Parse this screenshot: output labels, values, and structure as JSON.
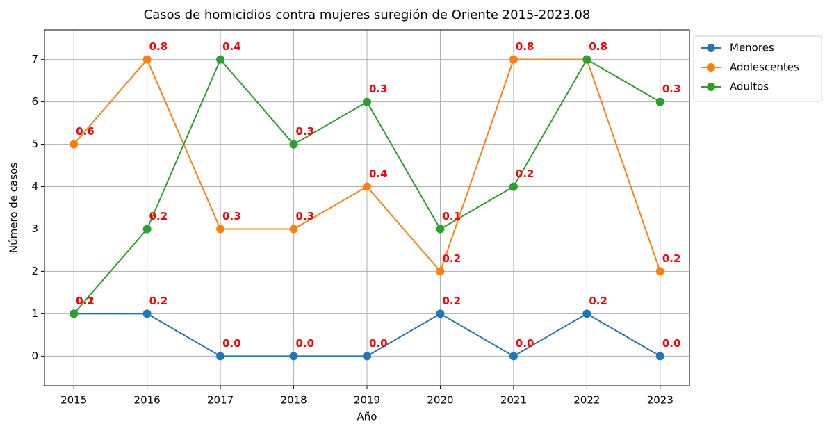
{
  "chart_data": {
    "type": "line",
    "title": "Casos de homicidios contra mujeres suregión de Oriente 2015-2023.08",
    "x_label": "Año",
    "y_label": "Número de casos",
    "x": [
      2015,
      2016,
      2017,
      2018,
      2019,
      2020,
      2021,
      2022,
      2023
    ],
    "series": [
      {
        "name": "Menores",
        "color": "#1f77b4",
        "values": [
          1,
          1,
          0,
          0,
          0,
          1,
          0,
          1,
          0
        ],
        "annotations": [
          "0.2",
          "0.2",
          "0.0",
          "0.0",
          "0.0",
          "0.2",
          "0.0",
          "0.2",
          "0.0"
        ]
      },
      {
        "name": "Adolescentes",
        "color": "#ff7f0e",
        "values": [
          5,
          7,
          3,
          3,
          4,
          2,
          7,
          7,
          2
        ],
        "annotations": [
          "0.6",
          "0.8",
          "0.3",
          "0.3",
          "0.4",
          "0.2",
          "0.8",
          "0.8",
          "0.2"
        ]
      },
      {
        "name": "Adultos",
        "color": "#2ca02c",
        "values": [
          1,
          3,
          7,
          5,
          6,
          3,
          4,
          7,
          6
        ],
        "annotations": [
          "0.1",
          "0.2",
          "0.4",
          "0.3",
          "0.3",
          "0.1",
          "0.2",
          "0.8",
          "0.3"
        ]
      }
    ],
    "annotation_color": "#ff0000",
    "xlim": [
      2014.6,
      2023.4
    ],
    "xticks": [
      2015,
      2016,
      2017,
      2018,
      2019,
      2020,
      2021,
      2022,
      2023
    ],
    "ylim": [
      -0.7,
      7.7
    ],
    "yticks": [
      0,
      1,
      2,
      3,
      4,
      5,
      6,
      7
    ],
    "grid": true,
    "legend": "outside-upper-right"
  }
}
